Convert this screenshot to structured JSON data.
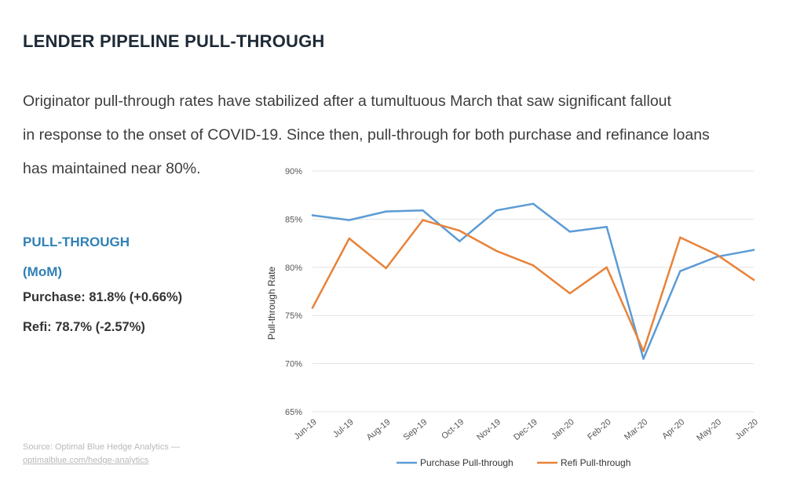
{
  "header": {
    "title": "LENDER PIPELINE PULL-THROUGH"
  },
  "intro": {
    "lines": [
      "Originator pull-through rates have stabilized after a tumultuous March that saw significant fallout",
      "in response to the onset of COVID-19. Since then, pull-through for both purchase and refinance loans",
      "has maintained near 80%."
    ]
  },
  "sidebar": {
    "heading_line1": "PULL-THROUGH",
    "heading_line2": "(MoM)",
    "purchase": "Purchase: 81.8% (+0.66%)",
    "refi": "Refi: 78.7% (-2.57%)"
  },
  "source": {
    "line1": "Source: Optimal Blue Hedge Analytics —",
    "line2": "optimalblue.com/hedge-analytics"
  },
  "colors": {
    "purchase": "#5b9bd5",
    "refi": "#e8833a",
    "grid": "#e3e3e3"
  },
  "chart_data": {
    "type": "line",
    "ylabel": "Pull-through Rate",
    "ylim": [
      65,
      90
    ],
    "yticks": [
      65,
      70,
      75,
      80,
      85,
      90
    ],
    "ytick_labels": [
      "65%",
      "70%",
      "75%",
      "80%",
      "85%",
      "90%"
    ],
    "categories": [
      "Jun-19",
      "Jul-19",
      "Aug-19",
      "Sep-19",
      "Oct-19",
      "Nov-19",
      "Dec-19",
      "Jan-20",
      "Feb-20",
      "Mar-20",
      "Apr-20",
      "May-20",
      "Jun-20"
    ],
    "grid": "horizontal",
    "legend_position": "bottom",
    "series": [
      {
        "name": "Purchase Pull-through",
        "color": "#5b9bd5",
        "values": [
          85.4,
          84.9,
          85.8,
          85.9,
          82.7,
          85.9,
          86.6,
          83.7,
          84.2,
          70.5,
          79.6,
          81.1,
          81.8
        ]
      },
      {
        "name": "Refi Pull-through",
        "color": "#e8833a",
        "values": [
          75.8,
          83.0,
          79.9,
          84.9,
          83.8,
          81.7,
          80.2,
          77.3,
          80.0,
          71.3,
          83.1,
          81.3,
          78.7
        ]
      }
    ]
  }
}
